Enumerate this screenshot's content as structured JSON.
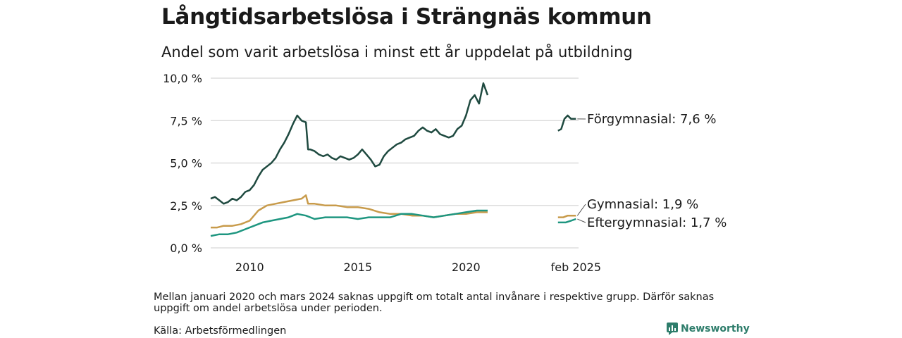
{
  "title": "Långtidsarbetslösa i Strängnäs kommun",
  "subtitle": "Andel som varit arbetslösa i minst ett år uppdelat på utbildning",
  "note": "Mellan januari 2020 och mars 2024 saknas uppgift om totalt antal invånare i respektive grupp. Därför saknas uppgift om andel arbetslösa under perioden.",
  "source": "Källa: Arbetsförmedlingen",
  "brand": {
    "name": "Newsworthy",
    "icon": "bar-chart-logo-icon",
    "color": "#2e7d6b"
  },
  "chart_data": {
    "type": "line",
    "x_ticks": [
      "2010",
      "2015",
      "2020",
      "feb 2025"
    ],
    "x_tick_values": [
      2010,
      2015,
      2020,
      2025.08
    ],
    "y_ticks": [
      "0,0 %",
      "2,5 %",
      "5,0 %",
      "7,5 %",
      "10,0 %"
    ],
    "y_tick_values": [
      0,
      2.5,
      5,
      7.5,
      10
    ],
    "xlim": [
      2008.2,
      2025.2
    ],
    "ylim": [
      0,
      10
    ],
    "grid": true,
    "series": [
      {
        "name": "Förgymnasial",
        "label": "Förgymnasial: 7,6 %",
        "color": "#1f4a40",
        "segments": [
          [
            [
              2008.2,
              2.9
            ],
            [
              2008.4,
              3.0
            ],
            [
              2008.6,
              2.8
            ],
            [
              2008.8,
              2.6
            ],
            [
              2009.0,
              2.7
            ],
            [
              2009.2,
              2.9
            ],
            [
              2009.4,
              2.8
            ],
            [
              2009.6,
              3.0
            ],
            [
              2009.8,
              3.3
            ],
            [
              2010.0,
              3.4
            ],
            [
              2010.2,
              3.7
            ],
            [
              2010.4,
              4.2
            ],
            [
              2010.6,
              4.6
            ],
            [
              2010.8,
              4.8
            ],
            [
              2011.0,
              5.0
            ],
            [
              2011.2,
              5.3
            ],
            [
              2011.4,
              5.8
            ],
            [
              2011.6,
              6.2
            ],
            [
              2011.8,
              6.7
            ],
            [
              2012.0,
              7.3
            ],
            [
              2012.2,
              7.8
            ],
            [
              2012.4,
              7.5
            ],
            [
              2012.6,
              7.4
            ],
            [
              2012.7,
              5.8
            ],
            [
              2012.8,
              5.8
            ],
            [
              2013.0,
              5.7
            ],
            [
              2013.2,
              5.5
            ],
            [
              2013.4,
              5.4
            ],
            [
              2013.6,
              5.5
            ],
            [
              2013.8,
              5.3
            ],
            [
              2014.0,
              5.2
            ],
            [
              2014.2,
              5.4
            ],
            [
              2014.4,
              5.3
            ],
            [
              2014.6,
              5.2
            ],
            [
              2014.8,
              5.3
            ],
            [
              2015.0,
              5.5
            ],
            [
              2015.2,
              5.8
            ],
            [
              2015.4,
              5.5
            ],
            [
              2015.6,
              5.2
            ],
            [
              2015.8,
              4.8
            ],
            [
              2016.0,
              4.9
            ],
            [
              2016.2,
              5.4
            ],
            [
              2016.4,
              5.7
            ],
            [
              2016.6,
              5.9
            ],
            [
              2016.8,
              6.1
            ],
            [
              2017.0,
              6.2
            ],
            [
              2017.2,
              6.4
            ],
            [
              2017.4,
              6.5
            ],
            [
              2017.6,
              6.6
            ],
            [
              2017.8,
              6.9
            ],
            [
              2018.0,
              7.1
            ],
            [
              2018.2,
              6.9
            ],
            [
              2018.4,
              6.8
            ],
            [
              2018.6,
              7.0
            ],
            [
              2018.8,
              6.7
            ],
            [
              2019.0,
              6.6
            ],
            [
              2019.2,
              6.5
            ],
            [
              2019.4,
              6.6
            ],
            [
              2019.6,
              7.0
            ],
            [
              2019.8,
              7.2
            ],
            [
              2020.0,
              7.8
            ],
            [
              2020.2,
              8.7
            ],
            [
              2020.4,
              9.0
            ],
            [
              2020.6,
              8.5
            ],
            [
              2020.8,
              9.7
            ],
            [
              2021.0,
              9.0
            ]
          ],
          [
            [
              2024.25,
              6.9
            ],
            [
              2024.4,
              7.0
            ],
            [
              2024.55,
              7.6
            ],
            [
              2024.7,
              7.8
            ],
            [
              2024.85,
              7.6
            ],
            [
              2025.0,
              7.6
            ],
            [
              2025.08,
              7.6
            ]
          ]
        ]
      },
      {
        "name": "Gymnasial",
        "label": "Gymnasial: 1,9 %",
        "color": "#c89b4b",
        "segments": [
          [
            [
              2008.2,
              1.2
            ],
            [
              2008.5,
              1.2
            ],
            [
              2008.8,
              1.3
            ],
            [
              2009.2,
              1.3
            ],
            [
              2009.6,
              1.4
            ],
            [
              2010.0,
              1.6
            ],
            [
              2010.4,
              2.2
            ],
            [
              2010.8,
              2.5
            ],
            [
              2011.2,
              2.6
            ],
            [
              2011.6,
              2.7
            ],
            [
              2012.0,
              2.8
            ],
            [
              2012.4,
              2.9
            ],
            [
              2012.6,
              3.1
            ],
            [
              2012.7,
              2.6
            ],
            [
              2013.0,
              2.6
            ],
            [
              2013.5,
              2.5
            ],
            [
              2014.0,
              2.5
            ],
            [
              2014.5,
              2.4
            ],
            [
              2015.0,
              2.4
            ],
            [
              2015.5,
              2.3
            ],
            [
              2016.0,
              2.1
            ],
            [
              2016.5,
              2.0
            ],
            [
              2017.0,
              2.0
            ],
            [
              2017.5,
              1.9
            ],
            [
              2018.0,
              1.9
            ],
            [
              2018.5,
              1.8
            ],
            [
              2019.0,
              1.9
            ],
            [
              2019.5,
              2.0
            ],
            [
              2020.0,
              2.0
            ],
            [
              2020.5,
              2.1
            ],
            [
              2021.0,
              2.1
            ]
          ],
          [
            [
              2024.25,
              1.8
            ],
            [
              2024.5,
              1.8
            ],
            [
              2024.7,
              1.9
            ],
            [
              2025.08,
              1.9
            ]
          ]
        ]
      },
      {
        "name": "Eftergymnasial",
        "label": "Eftergymnasial: 1,7 %",
        "color": "#1e9680",
        "segments": [
          [
            [
              2008.2,
              0.7
            ],
            [
              2008.6,
              0.8
            ],
            [
              2009.0,
              0.8
            ],
            [
              2009.4,
              0.9
            ],
            [
              2009.8,
              1.1
            ],
            [
              2010.2,
              1.3
            ],
            [
              2010.6,
              1.5
            ],
            [
              2011.0,
              1.6
            ],
            [
              2011.4,
              1.7
            ],
            [
              2011.8,
              1.8
            ],
            [
              2012.2,
              2.0
            ],
            [
              2012.6,
              1.9
            ],
            [
              2013.0,
              1.7
            ],
            [
              2013.5,
              1.8
            ],
            [
              2014.0,
              1.8
            ],
            [
              2014.5,
              1.8
            ],
            [
              2015.0,
              1.7
            ],
            [
              2015.5,
              1.8
            ],
            [
              2016.0,
              1.8
            ],
            [
              2016.5,
              1.8
            ],
            [
              2017.0,
              2.0
            ],
            [
              2017.5,
              2.0
            ],
            [
              2018.0,
              1.9
            ],
            [
              2018.5,
              1.8
            ],
            [
              2019.0,
              1.9
            ],
            [
              2019.5,
              2.0
            ],
            [
              2020.0,
              2.1
            ],
            [
              2020.5,
              2.2
            ],
            [
              2021.0,
              2.2
            ]
          ],
          [
            [
              2024.25,
              1.5
            ],
            [
              2024.6,
              1.5
            ],
            [
              2024.85,
              1.6
            ],
            [
              2025.08,
              1.7
            ]
          ]
        ]
      }
    ]
  }
}
